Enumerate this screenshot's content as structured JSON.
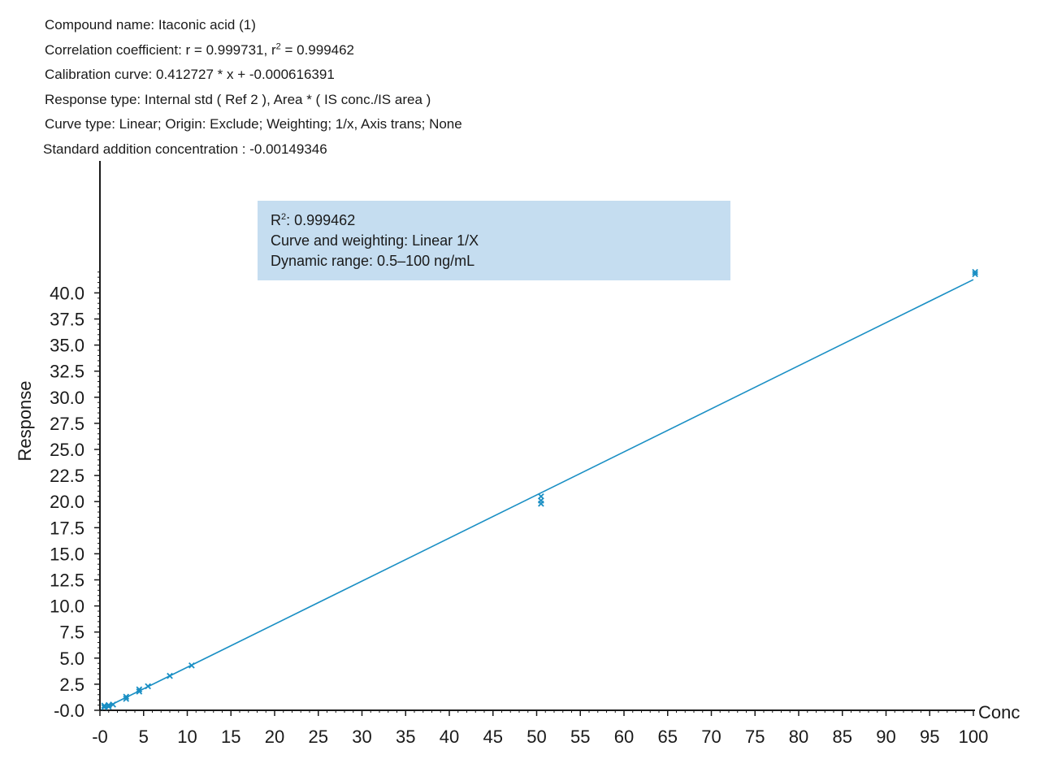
{
  "header": {
    "compound": "Compound name: Itaconic acid (1)",
    "correlation_prefix": "Correlation coefficient: r = 0.999731, r",
    "correlation_sup": "2",
    "correlation_suffix": " = 0.999462",
    "calibration": "Calibration curve: 0.412727 * x + -0.000616391",
    "response_type": "Response type: Internal std ( Ref 2 ), Area * ( IS conc./IS area )",
    "curve_type": "Curve type: Linear; Origin: Exclude; Weighting; 1/x, Axis trans; None",
    "std_addition": "Standard addition concentration : -0.00149346"
  },
  "annotation": {
    "r2_prefix": "R",
    "r2_sup": "2",
    "r2_value": ": 0.999462",
    "curve_weighting": "Curve and weighting: Linear 1/X",
    "dynamic_range": "Dynamic range: 0.5–100 ng/mL"
  },
  "colors": {
    "series": "#1a8fc4",
    "axis": "#1a1a1a",
    "annotation_bg": "#c5ddf0"
  },
  "chart_data": {
    "type": "scatter",
    "xlabel": "Conc",
    "ylabel": "Response",
    "xlim": [
      0,
      100
    ],
    "ylim": [
      0,
      42
    ],
    "x_ticks": [
      0,
      5,
      10,
      15,
      20,
      25,
      30,
      35,
      40,
      45,
      50,
      55,
      60,
      65,
      70,
      75,
      80,
      85,
      90,
      95,
      100
    ],
    "x_tick_labels": [
      "-0",
      "5",
      "10",
      "15",
      "20",
      "25",
      "30",
      "35",
      "40",
      "45",
      "50",
      "55",
      "60",
      "65",
      "70",
      "75",
      "80",
      "85",
      "90",
      "95",
      "100"
    ],
    "y_ticks": [
      0,
      2.5,
      5,
      7.5,
      10,
      12.5,
      15,
      17.5,
      20,
      22.5,
      25,
      27.5,
      30,
      32.5,
      35,
      37.5,
      40
    ],
    "y_tick_labels": [
      "-0.0",
      "2.5",
      "5.0",
      "7.5",
      "10.0",
      "12.5",
      "15.0",
      "17.5",
      "20.0",
      "22.5",
      "25.0",
      "27.5",
      "30.0",
      "32.5",
      "35.0",
      "37.5",
      "40.0"
    ],
    "grid": false,
    "fit_line": {
      "slope": 0.412727,
      "intercept": -0.000616391,
      "x_range": [
        0.5,
        100
      ]
    },
    "points": [
      {
        "x": 0.5,
        "y": 0.3
      },
      {
        "x": 0.5,
        "y": 0.45
      },
      {
        "x": 1.0,
        "y": 0.5
      },
      {
        "x": 1.0,
        "y": 0.35
      },
      {
        "x": 1.5,
        "y": 0.55
      },
      {
        "x": 3.0,
        "y": 1.3
      },
      {
        "x": 3.0,
        "y": 1.1
      },
      {
        "x": 4.5,
        "y": 2.0
      },
      {
        "x": 4.5,
        "y": 1.8
      },
      {
        "x": 5.5,
        "y": 2.3
      },
      {
        "x": 8.0,
        "y": 3.3
      },
      {
        "x": 10.5,
        "y": 4.3
      },
      {
        "x": 50.5,
        "y": 20.5
      },
      {
        "x": 50.5,
        "y": 20.1
      },
      {
        "x": 50.5,
        "y": 19.8
      },
      {
        "x": 100.2,
        "y": 42.0
      },
      {
        "x": 100.2,
        "y": 41.8
      }
    ]
  }
}
